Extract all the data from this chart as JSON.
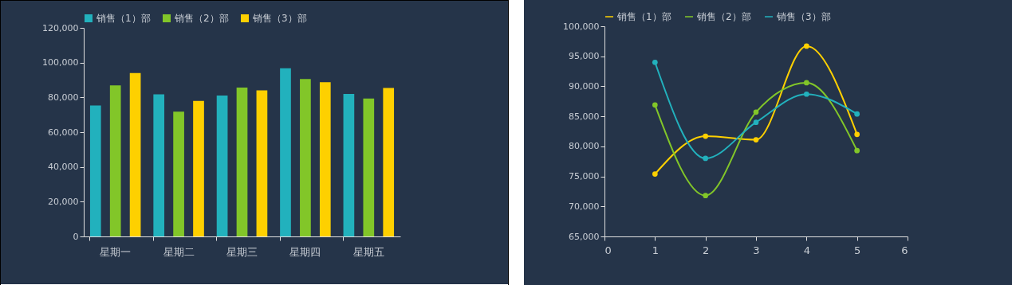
{
  "chart_data": [
    {
      "type": "bar",
      "categories": [
        "星期一",
        "星期二",
        "星期三",
        "星期四",
        "星期五"
      ],
      "series": [
        {
          "name": "销售（1）部",
          "color": "#22b1bd",
          "values": [
            75400,
            81700,
            81100,
            96700,
            82000
          ]
        },
        {
          "name": "销售（2）部",
          "color": "#82c629",
          "values": [
            86900,
            71800,
            85700,
            90600,
            79300
          ]
        },
        {
          "name": "销售（3）部",
          "color": "#fed000",
          "values": [
            94000,
            78000,
            84000,
            88700,
            85400
          ]
        }
      ],
      "ylim": [
        0,
        120000
      ],
      "yticks": [
        {
          "value": 0,
          "label": "0"
        },
        {
          "value": 20000,
          "label": "20,000"
        },
        {
          "value": 40000,
          "label": "40,000"
        },
        {
          "value": 60000,
          "label": "60,000"
        },
        {
          "value": 80000,
          "label": "80,000"
        },
        {
          "value": 100000,
          "label": "100,000"
        },
        {
          "value": 120000,
          "label": "120,000"
        }
      ],
      "legend": "top",
      "grid": false
    },
    {
      "type": "line",
      "x": [
        1,
        2,
        3,
        4,
        5
      ],
      "series": [
        {
          "name": "销售（1）部",
          "color": "#fed000",
          "values": [
            75400,
            81700,
            81100,
            96700,
            82000
          ]
        },
        {
          "name": "销售（2）部",
          "color": "#82c629",
          "values": [
            86900,
            71800,
            85700,
            90600,
            79300
          ]
        },
        {
          "name": "销售（3）部",
          "color": "#22b1bd",
          "values": [
            94000,
            78000,
            84000,
            88700,
            85400
          ]
        }
      ],
      "xlim": [
        0,
        6
      ],
      "xticks": [
        0,
        1,
        2,
        3,
        4,
        5,
        6
      ],
      "ylim": [
        65000,
        100000
      ],
      "yticks": [
        {
          "value": 65000,
          "label": "65,000"
        },
        {
          "value": 70000,
          "label": "70,000"
        },
        {
          "value": 75000,
          "label": "75,000"
        },
        {
          "value": 80000,
          "label": "80,000"
        },
        {
          "value": 85000,
          "label": "85,000"
        },
        {
          "value": 90000,
          "label": "90,000"
        },
        {
          "value": 95000,
          "label": "95,000"
        },
        {
          "value": 100000,
          "label": "100,000"
        }
      ],
      "legend": "top",
      "grid": false,
      "marker": "circle",
      "line_style": "solid"
    }
  ]
}
